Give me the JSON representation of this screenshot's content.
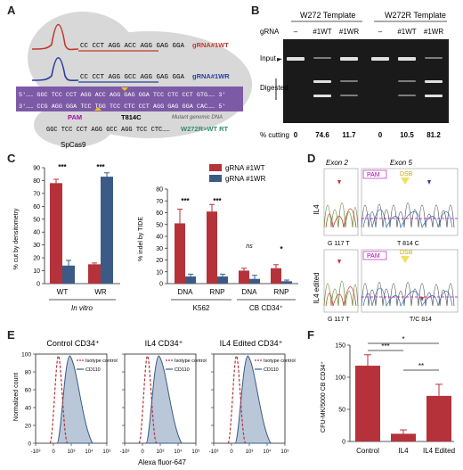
{
  "panels": {
    "A": "A",
    "B": "B",
    "C": "C",
    "D": "D",
    "E": "E",
    "F": "F"
  },
  "panelA": {
    "wt_line": "CC CCT AGG ACC AGG GAG GGA",
    "wt_guide": "gRNA#1WT",
    "wr_line": "CC CCT AGG GCC AGG GAG GGA",
    "wr_guide": "gRNA#1WR",
    "top_dna": "5'…… GGC TCC CCT AGG ACC AGG GAG GGA TCC CTC CCT GTG…… 3'",
    "bottom_dna": "3'…… CCG AGG GGA TCC TGG TCC CTC CCT AGG GAG GGA CAC…… 5'",
    "rt_line": "GGC TCC CCT AGG GCC AGG TCC CTC……",
    "pam": "PAM",
    "mutation": "T814C",
    "mutant_note": "Mutant genomic DNA",
    "rt_label": "W272R>WT RT",
    "cas9": "SpCas9"
  },
  "panelB": {
    "title_w272": "W272 Template",
    "title_w272r": "W272R Template",
    "grna_label": "gRNA",
    "lanes": [
      "–",
      "#1WT",
      "#1WR",
      "–",
      "#1WT",
      "#1WR"
    ],
    "input_label": "Input",
    "digested_label": "Digested",
    "cutting_label": "% cutting",
    "cutting_values": [
      "0",
      "74.6",
      "11.7",
      "0",
      "10.5",
      "81.2"
    ]
  },
  "panelC": {
    "legend": [
      "gRNA #1WT",
      "gRNA #1WR"
    ],
    "left": {
      "ylabel": "% cut by densitometry",
      "yticks": [
        "0",
        "10",
        "20",
        "30",
        "40",
        "50",
        "60",
        "70",
        "80",
        "90"
      ],
      "categories": [
        "WT",
        "WR"
      ],
      "group_label": "In vitro",
      "sig": [
        "***",
        "***"
      ]
    },
    "right": {
      "ylabel": "% indel by TIDE",
      "yticks": [
        "0",
        "10",
        "20",
        "30",
        "40",
        "50",
        "60",
        "70",
        "80"
      ],
      "categories": [
        "DNA",
        "RNP",
        "DNA",
        "RNP"
      ],
      "group_labels": [
        "K562",
        "CB CD34⁺"
      ],
      "sig": [
        "***",
        "***",
        "ns",
        "*"
      ]
    }
  },
  "panelD": {
    "exon2": "Exon 2",
    "exon5": "Exon 5",
    "row_labels": [
      "IL4",
      "IL4 edited"
    ],
    "pam": "PAM",
    "dsb": "DSB",
    "bases_top": [
      "G 117 T",
      "T 814 C"
    ],
    "bases_bottom": [
      "G 117 T",
      "T/C 814"
    ]
  },
  "panelE": {
    "titles": [
      "Control CD34⁺",
      "IL4 CD34⁺",
      "IL4 Edited CD34⁺"
    ],
    "ylabel": "Normalized count",
    "xlabel": "Alexa fluor-647",
    "yticks": [
      "0",
      "20",
      "40",
      "60",
      "80",
      "100"
    ],
    "xticks": [
      "-10³",
      "0",
      "10³",
      "10⁴",
      "10⁵"
    ],
    "legend": [
      "Isotype control",
      "CD110"
    ]
  },
  "panelF": {
    "ylabel": "CFU-MK/5000 CB CD34⁺",
    "yticks": [
      "0",
      "50",
      "100",
      "150"
    ],
    "categories": [
      "Control",
      "IL4",
      "IL4 Edited"
    ],
    "sig": [
      "***",
      "*",
      "**"
    ]
  },
  "colors": {
    "red": "#b5323a",
    "blue": "#3b5b86",
    "gray": "#c9c9c9",
    "purple": "#7a5aa0",
    "green": "#2e8b6e"
  },
  "chart_data": [
    {
      "type": "bar",
      "title": "",
      "ylabel": "% cut by densitometry",
      "ylim": [
        0,
        90
      ],
      "categories": [
        "WT",
        "WR"
      ],
      "series": [
        {
          "name": "gRNA #1WT",
          "values": [
            78,
            15
          ],
          "errors": [
            3,
            1
          ]
        },
        {
          "name": "gRNA #1WR",
          "values": [
            14,
            83
          ],
          "errors": [
            4,
            3
          ]
        }
      ]
    },
    {
      "type": "bar",
      "title": "",
      "ylabel": "% indel by TIDE",
      "ylim": [
        0,
        80
      ],
      "categories": [
        "DNA",
        "RNP",
        "DNA",
        "RNP"
      ],
      "series": [
        {
          "name": "gRNA #1WT",
          "values": [
            51,
            61,
            11,
            13
          ],
          "errors": [
            12,
            6,
            2,
            3
          ]
        },
        {
          "name": "gRNA #1WR",
          "values": [
            6,
            6,
            4,
            2
          ],
          "errors": [
            2,
            2,
            3,
            1
          ]
        }
      ]
    },
    {
      "type": "bar",
      "title": "",
      "ylabel": "CFU-MK/5000 CB CD34⁺",
      "ylim": [
        0,
        150
      ],
      "categories": [
        "Control",
        "IL4",
        "IL4 Edited"
      ],
      "values": [
        118,
        12,
        71
      ],
      "errors": [
        17,
        6,
        18
      ]
    }
  ]
}
